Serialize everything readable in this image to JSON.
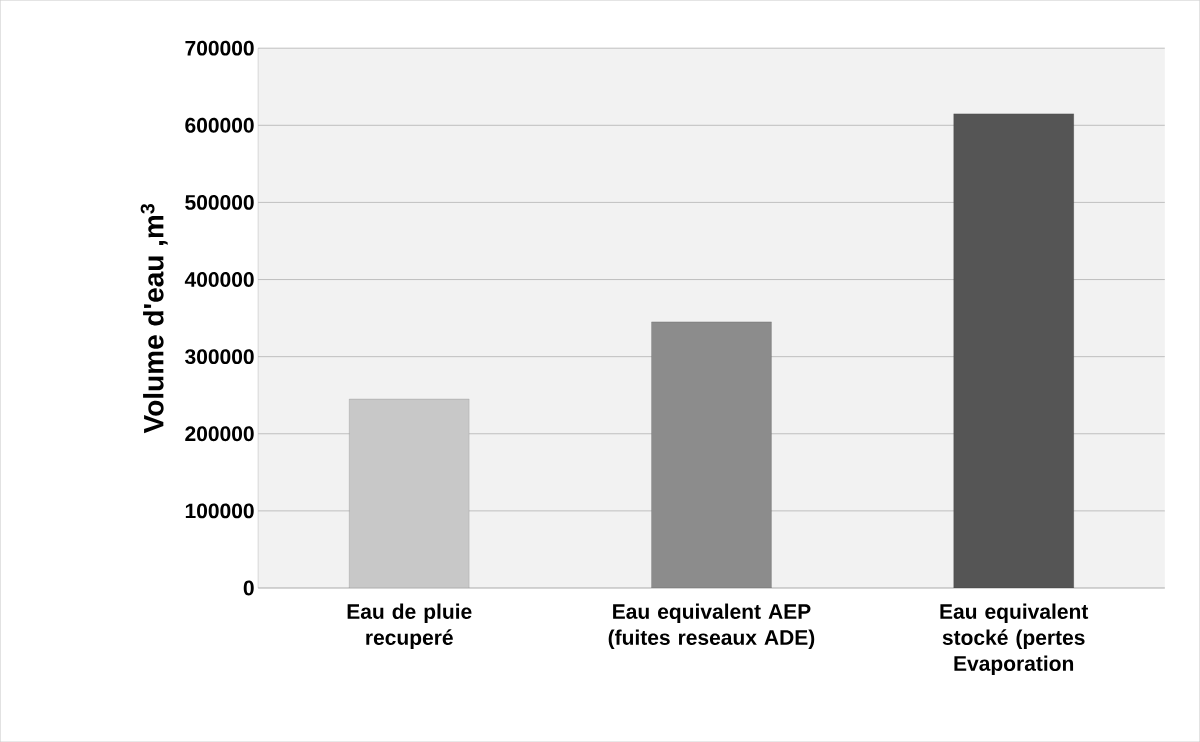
{
  "chart_data": {
    "type": "bar",
    "ylabel": "Volume  d'eau ,m$^{3}$",
    "categories": [
      "Eau de pluie recuperé",
      "Eau equivalent AEP (fuites reseaux ADE)",
      "Eau equivalent stocké (pertes Evaporation"
    ],
    "values": [
      245000,
      345000,
      615000
    ],
    "colors": [
      "#c8c8c8",
      "#8c8c8c",
      "#555555"
    ],
    "ylim": [
      0,
      700000
    ],
    "yticks": [
      0,
      100000,
      200000,
      300000,
      400000,
      500000,
      600000,
      700000
    ],
    "grid": "y"
  }
}
